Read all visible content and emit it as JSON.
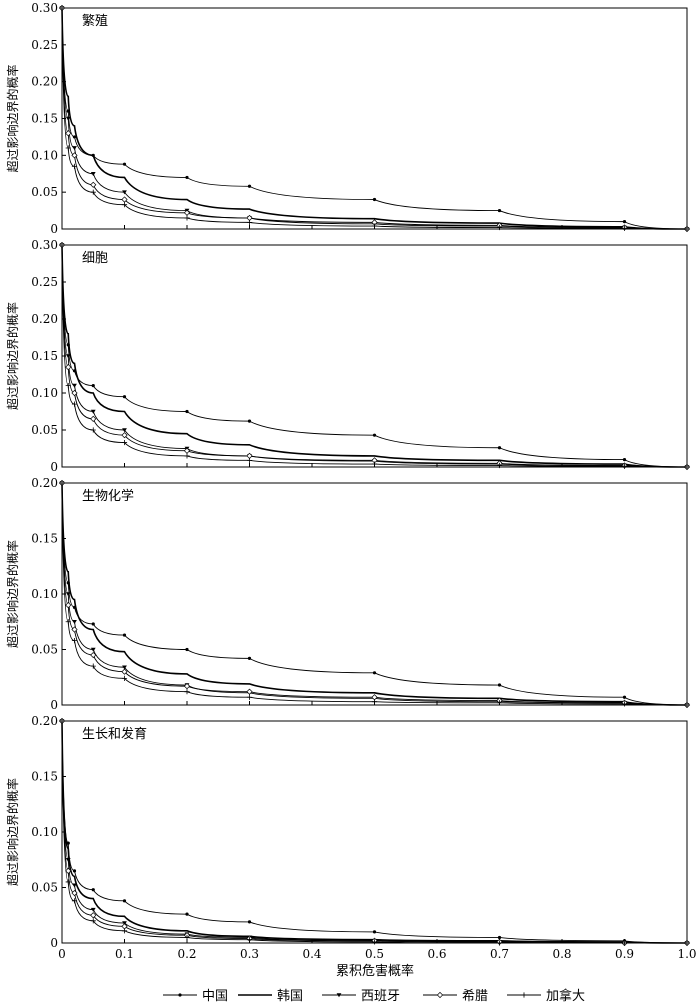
{
  "chart_data": [
    {
      "type": "line",
      "title": "繁殖",
      "ylabel": "超过影响边界的概率",
      "xlabel": "",
      "xlim": [
        0,
        1
      ],
      "ylim": [
        0,
        0.3
      ],
      "yticks": [
        "0",
        "0.05",
        "0.10",
        "0.15",
        "0.20",
        "0.25",
        "0.30"
      ],
      "xticks": [],
      "x": [
        0,
        0.01,
        0.02,
        0.05,
        0.1,
        0.2,
        0.3,
        0.5,
        0.7,
        0.9,
        1.0
      ],
      "series": [
        {
          "name": "中国",
          "marker": "dot",
          "values": [
            0.3,
            0.16,
            0.125,
            0.1,
            0.088,
            0.07,
            0.058,
            0.04,
            0.025,
            0.01,
            0.0
          ]
        },
        {
          "name": "韩国",
          "marker": "none",
          "values": [
            0.3,
            0.18,
            0.14,
            0.1,
            0.07,
            0.04,
            0.027,
            0.014,
            0.008,
            0.003,
            0.0
          ]
        },
        {
          "name": "西班牙",
          "marker": "triangle",
          "values": [
            0.3,
            0.15,
            0.11,
            0.075,
            0.05,
            0.025,
            0.015,
            0.007,
            0.004,
            0.002,
            0.0
          ]
        },
        {
          "name": "希腊",
          "marker": "diamond",
          "values": [
            0.3,
            0.13,
            0.1,
            0.06,
            0.04,
            0.022,
            0.015,
            0.009,
            0.005,
            0.002,
            0.0
          ]
        },
        {
          "name": "加拿大",
          "marker": "plus",
          "values": [
            0.3,
            0.11,
            0.085,
            0.05,
            0.033,
            0.015,
            0.009,
            0.004,
            0.002,
            0.001,
            0.0
          ]
        }
      ]
    },
    {
      "type": "line",
      "title": "细胞",
      "ylabel": "超过影响边界的概率",
      "xlabel": "",
      "xlim": [
        0,
        1
      ],
      "ylim": [
        0,
        0.3
      ],
      "yticks": [
        "0",
        "0.05",
        "0.10",
        "0.15",
        "0.20",
        "0.25",
        "0.30"
      ],
      "xticks": [],
      "x": [
        0,
        0.01,
        0.02,
        0.05,
        0.1,
        0.2,
        0.3,
        0.5,
        0.7,
        0.9,
        1.0
      ],
      "series": [
        {
          "name": "中国",
          "marker": "dot",
          "values": [
            0.3,
            0.165,
            0.13,
            0.11,
            0.095,
            0.075,
            0.062,
            0.043,
            0.026,
            0.01,
            0.0
          ]
        },
        {
          "name": "韩国",
          "marker": "none",
          "values": [
            0.3,
            0.18,
            0.14,
            0.1,
            0.075,
            0.045,
            0.03,
            0.015,
            0.009,
            0.004,
            0.0
          ]
        },
        {
          "name": "西班牙",
          "marker": "triangle",
          "values": [
            0.3,
            0.15,
            0.11,
            0.075,
            0.05,
            0.025,
            0.015,
            0.008,
            0.004,
            0.002,
            0.0
          ]
        },
        {
          "name": "希腊",
          "marker": "diamond",
          "values": [
            0.3,
            0.135,
            0.1,
            0.065,
            0.043,
            0.022,
            0.015,
            0.009,
            0.005,
            0.002,
            0.0
          ]
        },
        {
          "name": "加拿大",
          "marker": "plus",
          "values": [
            0.3,
            0.11,
            0.085,
            0.05,
            0.033,
            0.015,
            0.009,
            0.004,
            0.002,
            0.001,
            0.0
          ]
        }
      ]
    },
    {
      "type": "line",
      "title": "生物化学",
      "ylabel": "超过影响边界的概率",
      "xlabel": "",
      "xlim": [
        0,
        1
      ],
      "ylim": [
        0,
        0.2
      ],
      "yticks": [
        "0",
        "0.05",
        "0.10",
        "0.15",
        "0.20"
      ],
      "xticks": [],
      "x": [
        0,
        0.01,
        0.02,
        0.05,
        0.1,
        0.2,
        0.3,
        0.5,
        0.7,
        0.9,
        1.0
      ],
      "series": [
        {
          "name": "中国",
          "marker": "dot",
          "values": [
            0.2,
            0.11,
            0.088,
            0.073,
            0.063,
            0.05,
            0.042,
            0.029,
            0.018,
            0.007,
            0.0
          ]
        },
        {
          "name": "韩国",
          "marker": "none",
          "values": [
            0.2,
            0.12,
            0.095,
            0.068,
            0.048,
            0.028,
            0.019,
            0.011,
            0.006,
            0.003,
            0.0
          ]
        },
        {
          "name": "西班牙",
          "marker": "triangle",
          "values": [
            0.2,
            0.1,
            0.075,
            0.05,
            0.034,
            0.018,
            0.011,
            0.006,
            0.003,
            0.002,
            0.0
          ]
        },
        {
          "name": "希腊",
          "marker": "diamond",
          "values": [
            0.2,
            0.09,
            0.068,
            0.045,
            0.03,
            0.017,
            0.012,
            0.007,
            0.004,
            0.002,
            0.0
          ]
        },
        {
          "name": "加拿大",
          "marker": "plus",
          "values": [
            0.2,
            0.075,
            0.058,
            0.035,
            0.024,
            0.012,
            0.007,
            0.003,
            0.002,
            0.001,
            0.0
          ]
        }
      ]
    },
    {
      "type": "line",
      "title": "生长和发育",
      "ylabel": "超过影响边界的概率",
      "xlabel": "累积危害概率",
      "xlim": [
        0,
        1
      ],
      "ylim": [
        0,
        0.2
      ],
      "yticks": [
        "0",
        "0.05",
        "0.10",
        "0.15",
        "0.20"
      ],
      "xticks": [
        "0",
        "0.1",
        "0.2",
        "0.3",
        "0.4",
        "0.5",
        "0.6",
        "0.7",
        "0.8",
        "0.9",
        "1.0"
      ],
      "x": [
        0,
        0.01,
        0.02,
        0.05,
        0.1,
        0.2,
        0.3,
        0.5,
        0.7,
        0.9,
        1.0
      ],
      "series": [
        {
          "name": "中国",
          "marker": "dot",
          "values": [
            0.2,
            0.09,
            0.065,
            0.048,
            0.038,
            0.026,
            0.019,
            0.01,
            0.005,
            0.002,
            0.0
          ]
        },
        {
          "name": "韩国",
          "marker": "none",
          "values": [
            0.2,
            0.085,
            0.06,
            0.04,
            0.024,
            0.011,
            0.006,
            0.003,
            0.002,
            0.001,
            0.0
          ]
        },
        {
          "name": "西班牙",
          "marker": "triangle",
          "values": [
            0.2,
            0.075,
            0.052,
            0.03,
            0.018,
            0.008,
            0.005,
            0.002,
            0.001,
            0.0,
            0.0
          ]
        },
        {
          "name": "希腊",
          "marker": "diamond",
          "values": [
            0.2,
            0.065,
            0.045,
            0.025,
            0.015,
            0.007,
            0.004,
            0.002,
            0.001,
            0.0,
            0.0
          ]
        },
        {
          "name": "加拿大",
          "marker": "plus",
          "values": [
            0.2,
            0.055,
            0.038,
            0.02,
            0.011,
            0.005,
            0.003,
            0.001,
            0.0,
            0.0,
            0.0
          ]
        }
      ]
    }
  ],
  "legend": [
    {
      "label": "中国",
      "marker": "dot"
    },
    {
      "label": "韩国",
      "marker": "none"
    },
    {
      "label": "西班牙",
      "marker": "triangle"
    },
    {
      "label": "希腊",
      "marker": "diamond"
    },
    {
      "label": "加拿大",
      "marker": "plus"
    }
  ]
}
